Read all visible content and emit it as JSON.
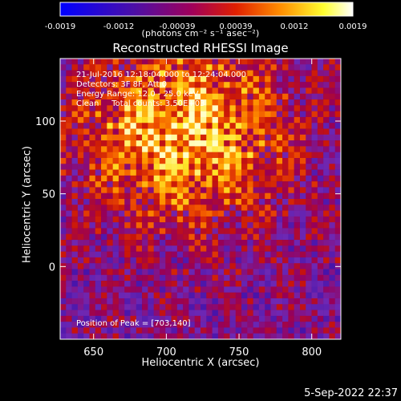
{
  "colorbar": {
    "ticks": [
      "-0.0019",
      "-0.0012",
      "-0.00039",
      "0.00039",
      "0.0012",
      "0.0019"
    ],
    "units": "(photons cm⁻² s⁻¹ asec⁻²)",
    "range": [
      -0.0019,
      0.0019
    ]
  },
  "title": "Reconstructed RHESSI Image",
  "overlay": {
    "time": "21-Jul-2016 12:18:04.000 to 12:24:04.000",
    "detectors": "Detectors: 3F 8F, Att 0",
    "energy": "Energy Range: 12.0 - 25.0 keV",
    "method": "Clean     Total counts: 3.50E+03",
    "peak": "Position of Peak = [703,140]"
  },
  "axes": {
    "xlabel": "Heliocentric X (arcsec)",
    "ylabel": "Heliocentric Y (arcsec)",
    "xticks": [
      "650",
      "700",
      "750",
      "800"
    ],
    "yticks": [
      "100",
      "50",
      "0"
    ]
  },
  "timestamp": "5-Sep-2022 22:37",
  "chart_data": {
    "type": "heatmap",
    "title": "Reconstructed RHESSI Image",
    "xlabel": "Heliocentric X (arcsec)",
    "ylabel": "Heliocentric Y (arcsec)",
    "xlim": [
      627,
      820
    ],
    "ylim": [
      -50,
      143
    ],
    "xticks": [
      650,
      700,
      750,
      800
    ],
    "yticks": [
      0,
      50,
      100
    ],
    "color_range": [
      -0.0019,
      0.0019
    ],
    "colormap": "blue-purple-red-yellow-white",
    "peak_position": [
      703,
      140
    ],
    "bright_region_center": [
      712,
      92
    ],
    "grid_cells": [
      48,
      48
    ]
  }
}
